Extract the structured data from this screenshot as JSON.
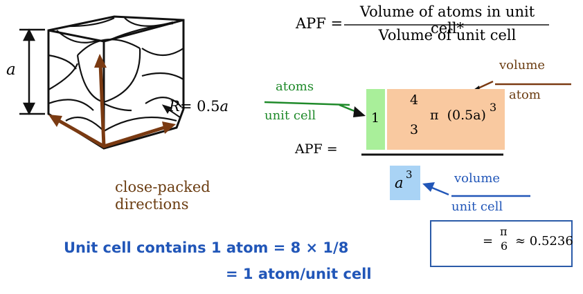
{
  "formula": {
    "lhs": "APF =",
    "numerator": "Volume of atoms in unit cell*",
    "denominator": "Volume of unit cell"
  },
  "cube": {
    "dimension_label": "a",
    "radius_label_R": "R",
    "radius_label_eq": "= 0.5",
    "radius_label_a": "a"
  },
  "directions_label": {
    "line1": "close-packed",
    "line2": "directions"
  },
  "atoms_per_cell": {
    "top": "atoms",
    "bottom": "unit cell",
    "value": "1"
  },
  "volume_per_atom": {
    "top": "volume",
    "bottom": "atom",
    "frac_num": "4",
    "frac_den": "3",
    "expr": "π  (0.5a)",
    "exponent": "3"
  },
  "apf_label": "APF =",
  "unit_cell_volume": {
    "base": "a",
    "exponent": "3",
    "top": "volume",
    "bottom": "unit cell"
  },
  "result": {
    "eq": "=",
    "num": "π",
    "den": "6",
    "approx": "≈ 0.5236"
  },
  "statement": {
    "line1": "Unit cell contains 1 atom = 8 × 1/8",
    "line2": "= 1 atom/unit cell"
  },
  "colors": {
    "arrow_brown": "#7a3a12",
    "label_green": "#1f8a2a",
    "label_brown": "#6b3d12",
    "label_blue": "#2156b8",
    "box_green": "#a9ef9a",
    "box_orange": "#f9c9a0",
    "box_blue": "#a9d3f5"
  }
}
